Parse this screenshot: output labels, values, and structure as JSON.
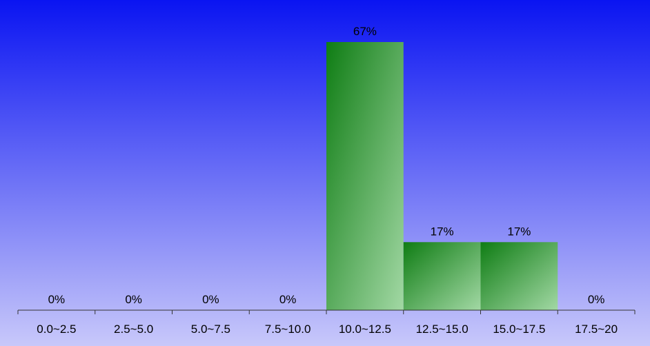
{
  "chart_data": {
    "type": "bar",
    "categories": [
      "0.0~2.5",
      "2.5~5.0",
      "5.0~7.5",
      "7.5~10.0",
      "10.0~12.5",
      "12.5~15.0",
      "15.0~17.5",
      "17.5~20"
    ],
    "values": [
      0,
      0,
      0,
      0,
      67,
      17,
      17,
      0
    ],
    "value_labels": [
      "0%",
      "0%",
      "0%",
      "0%",
      "67%",
      "17%",
      "17%",
      "0%"
    ],
    "value_unit": "%",
    "ylim": [
      0,
      70
    ],
    "grid": false,
    "legend": "none",
    "colors": {
      "background_top": "#0a14f2",
      "background_bottom": "#c8c8fa",
      "bar_dark": "#0f7d14",
      "bar_light": "#a2d8a4",
      "axis": "#333333",
      "text": "#000000"
    }
  }
}
